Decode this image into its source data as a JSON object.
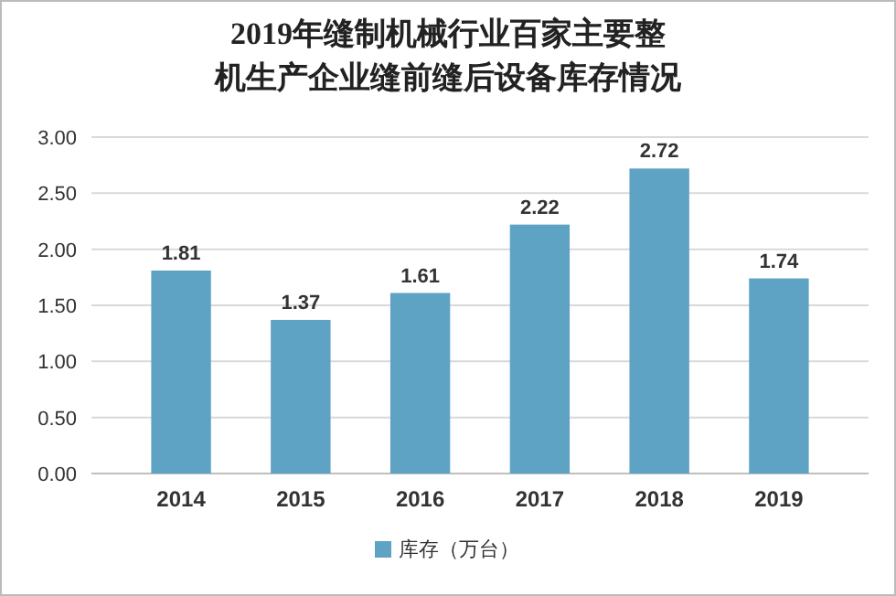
{
  "chart_data": {
    "type": "bar",
    "title": "2019年缝制机械行业百家主要整机生产企业缝前缝后设备库存情况",
    "categories": [
      "2014",
      "2015",
      "2016",
      "2017",
      "2018",
      "2019"
    ],
    "series": [
      {
        "name": "库存（万台）",
        "color": "#5fa3c4",
        "values": [
          1.81,
          1.37,
          1.61,
          2.22,
          2.72,
          1.74
        ]
      }
    ],
    "ylim": [
      0,
      3
    ],
    "yticks": [
      {
        "value": 0,
        "label": "0.00"
      },
      {
        "value": 0.5,
        "label": "0.50"
      },
      {
        "value": 1,
        "label": "1.00"
      },
      {
        "value": 1.5,
        "label": "1.50"
      },
      {
        "value": 2,
        "label": "2.00"
      },
      {
        "value": 2.5,
        "label": "2.50"
      },
      {
        "value": 3,
        "label": "3.00"
      }
    ],
    "grid": "y",
    "legend": "bottom",
    "data_labels": true
  }
}
